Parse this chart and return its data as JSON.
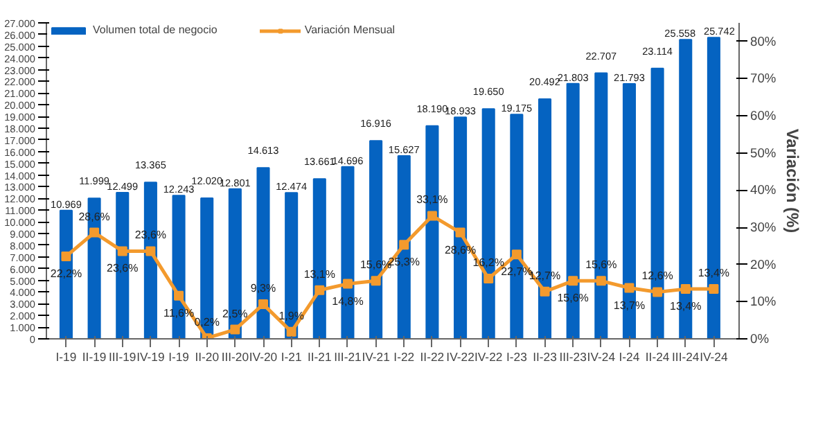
{
  "chart_data": {
    "type": "bar",
    "y2label": "Variación (%)",
    "categories": [
      "I-19",
      "II-19",
      "III-19",
      "IV-19",
      "I-19",
      "II-20",
      "III-20",
      "IV-20",
      "I-21",
      "II-21",
      "III-21",
      "IV-21",
      "I-22",
      "II-22",
      "IV-22",
      "IV-22",
      "I-23",
      "II-23",
      "III-23",
      "IV-24",
      "I-24",
      "II-24",
      "III-24",
      "IV-24"
    ],
    "series": [
      {
        "name": "Volumen total de negocio",
        "color": "#0563c1",
        "values": [
          10969,
          11999,
          12499,
          13365,
          12243,
          12020,
          12801,
          14613,
          12474,
          13661,
          14696,
          16916,
          15627,
          18190,
          18933,
          19650,
          19175,
          20492,
          21803,
          22707,
          21793,
          23114,
          25558,
          25742
        ],
        "value_labels": [
          "10.969",
          "11.999",
          "12.499",
          "13.365",
          "12.243",
          "12.020",
          "12.801",
          "14.613",
          "12.474",
          "13.661",
          "14.696",
          "16.916",
          "15.627",
          "18.190",
          "18.933",
          "19.650",
          "19.175",
          "20.492",
          "21.803",
          "22.707",
          "21.793",
          "23.114",
          "25.558",
          "25.742"
        ]
      },
      {
        "name": "Variación Mensual",
        "type": "line",
        "axis": "y2",
        "color": "#f39a2d",
        "values": [
          22.2,
          28.6,
          23.6,
          23.6,
          11.6,
          0.2,
          2.5,
          9.3,
          1.9,
          13.1,
          14.8,
          15.6,
          25.3,
          33.1,
          28.6,
          16.2,
          22.7,
          12.7,
          15.6,
          15.6,
          13.7,
          12.6,
          13.4,
          13.4
        ],
        "value_labels": [
          "22,2%",
          "28,6%",
          "23,6%",
          "23,6%",
          "11,6%",
          "0,2%",
          "2,5%",
          "9,3%",
          "1,9%",
          "13,1%",
          "14,8%",
          "15,6%",
          "25,3%",
          "33,1%",
          "28,6%",
          "16,2%",
          "22,7%",
          "12,7%",
          "15,6%",
          "15,6%",
          "13,7%",
          "12,6%",
          "13,4%",
          "13,4%"
        ]
      }
    ],
    "ylim": [
      0,
      27000
    ],
    "yticks": [
      {
        "value": 0,
        "label": "0"
      },
      {
        "value": 1000,
        "label": "1.000"
      },
      {
        "value": 2000,
        "label": "2.000"
      },
      {
        "value": 3000,
        "label": "3.000"
      },
      {
        "value": 4000,
        "label": "4.000"
      },
      {
        "value": 5000,
        "label": "5.000"
      },
      {
        "value": 6000,
        "label": "6.000"
      },
      {
        "value": 7000,
        "label": "7.000"
      },
      {
        "value": 8000,
        "label": "8.000"
      },
      {
        "value": 9000,
        "label": "9.000"
      },
      {
        "value": 10000,
        "label": "10.000"
      },
      {
        "value": 11000,
        "label": "11.000"
      },
      {
        "value": 12000,
        "label": "12.000"
      },
      {
        "value": 13000,
        "label": "13.000"
      },
      {
        "value": 14000,
        "label": "14.000"
      },
      {
        "value": 15000,
        "label": "15.000"
      },
      {
        "value": 16000,
        "label": "16.000"
      },
      {
        "value": 17000,
        "label": "17.000"
      },
      {
        "value": 18000,
        "label": "18.000"
      },
      {
        "value": 19000,
        "label": "19.000"
      },
      {
        "value": 20000,
        "label": "20.000"
      },
      {
        "value": 21000,
        "label": "21.000"
      },
      {
        "value": 22000,
        "label": "22.000"
      },
      {
        "value": 23000,
        "label": "23.000"
      },
      {
        "value": 24000,
        "label": "24.000"
      },
      {
        "value": 25000,
        "label": "25.000"
      },
      {
        "value": 26000,
        "label": "26.000"
      },
      {
        "value": 27000,
        "label": "27.000"
      }
    ],
    "y2lim": [
      0,
      85
    ],
    "y2ticks": [
      {
        "value": 0,
        "label": "0%"
      },
      {
        "value": 10,
        "label": "10%"
      },
      {
        "value": 20,
        "label": "20%"
      },
      {
        "value": 30,
        "label": "30%"
      },
      {
        "value": 40,
        "label": "40%"
      },
      {
        "value": 50,
        "label": "50%"
      },
      {
        "value": 60,
        "label": "60%"
      },
      {
        "value": 70,
        "label": "70%"
      },
      {
        "value": 80,
        "label": "80%"
      }
    ],
    "grid": false,
    "legend": "top left",
    "marker": "square",
    "line_style": "solid"
  }
}
